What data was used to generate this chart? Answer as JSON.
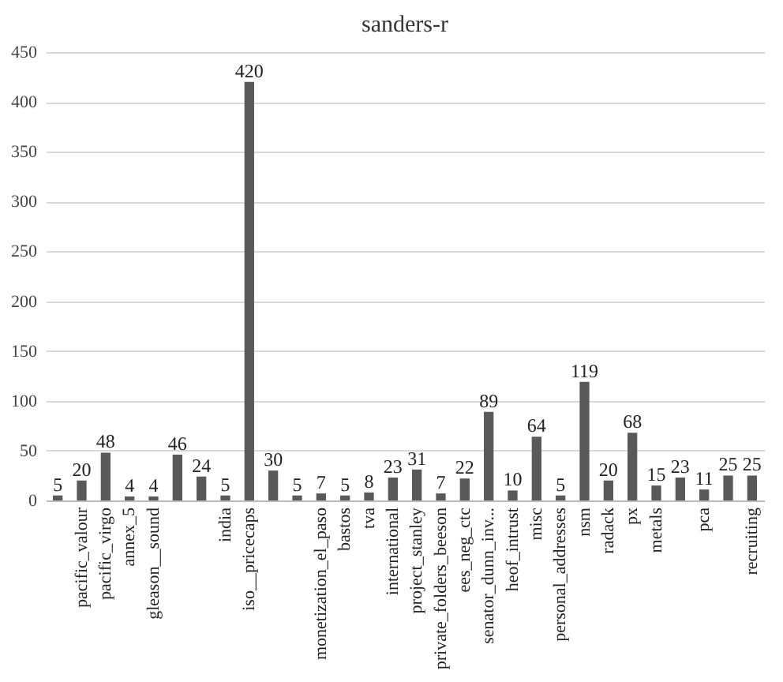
{
  "chart_data": {
    "type": "bar",
    "title": "sanders-r",
    "categories": [
      null,
      "pacific_valour",
      "pacific_virgo",
      "annex_5",
      "gleason__sound",
      null,
      null,
      "india",
      "iso__pricecaps",
      null,
      null,
      "monetization_el_paso",
      "bastos",
      "tva",
      "international",
      "project_stanley",
      "private_folders_beeson",
      "ees_neg_ctc",
      "senator_dunn_inv...",
      "heof_intrust",
      "misc",
      "personal_addresses",
      "nsm",
      "radack",
      "px",
      "metals",
      null,
      "pca",
      null,
      "recruiting"
    ],
    "values": [
      5,
      20,
      48,
      4,
      4,
      46,
      24,
      5,
      420,
      30,
      5,
      7,
      5,
      8,
      23,
      31,
      7,
      22,
      89,
      10,
      64,
      5,
      119,
      20,
      68,
      15,
      23,
      11,
      25,
      25
    ],
    "color": "#595959",
    "ylim": [
      0,
      450
    ],
    "yticks": [
      0,
      50,
      100,
      150,
      200,
      250,
      300,
      350,
      400,
      450
    ],
    "grid": "y",
    "data_labels": true
  }
}
